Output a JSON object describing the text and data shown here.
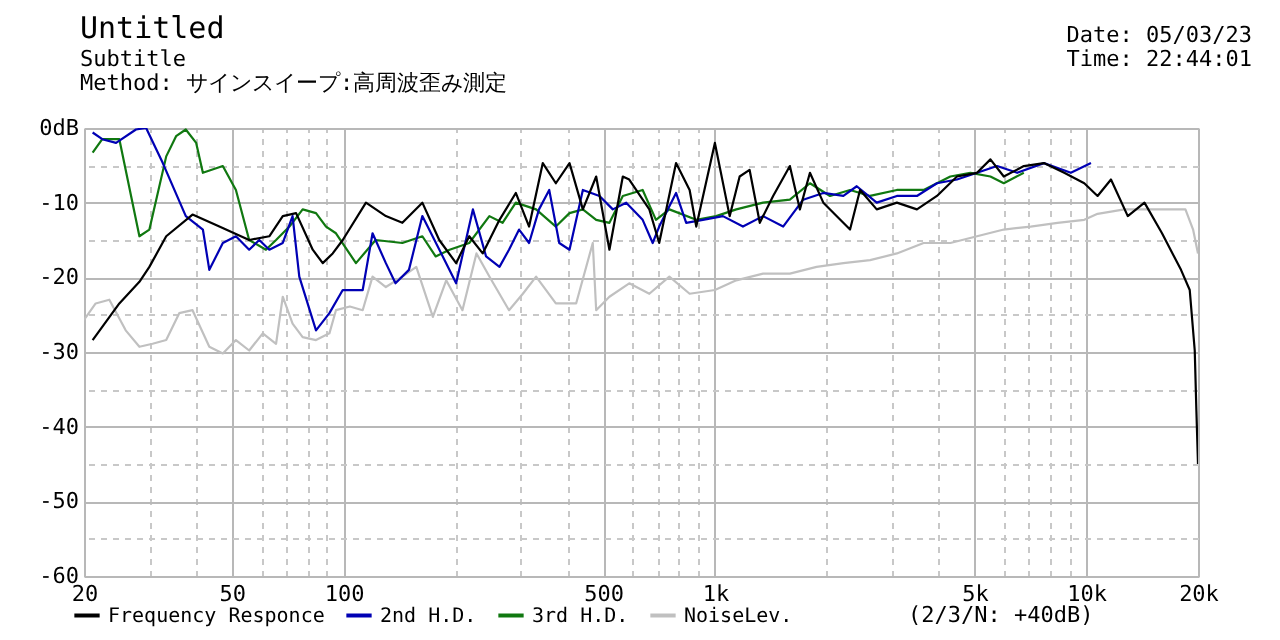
{
  "chart_data": {
    "type": "line",
    "title": "Untitled",
    "subtitle": "Subtitle",
    "annotations": [
      "Method: サインスイープ:高周波歪み測定",
      "Date: 05/03/23",
      "Time: 22:44:01",
      "(2/3/N: +40dB)"
    ],
    "series": [
      {
        "name": "Frequency Responce",
        "color": "#000000",
        "x": [
          21.1,
          24.9,
          28.2,
          30.0,
          33.3,
          39.2,
          46.3,
          55.7,
          63.1,
          68.6,
          74.5,
          82.6,
          87.9,
          93.5,
          99.5,
          114.9,
          130,
          144,
          163,
          181,
          201,
          218,
          237,
          263,
          291,
          316,
          344,
          373,
          406,
          441,
          479,
          520,
          565,
          588,
          666,
          708,
          786,
          855,
          891,
          1000,
          1096,
          1166,
          1240,
          1321,
          1435,
          1592,
          1694,
          1803,
          1959,
          2312,
          2460,
          2728,
          3091,
          3500,
          3963,
          4487,
          5081,
          5521,
          5998,
          6792,
          7691,
          8725,
          9880,
          10730,
          11660,
          12940,
          14350,
          16000,
          18000,
          19000,
          19600,
          19800,
          20000
        ],
        "values": [
          -28.4,
          -23.5,
          -20.6,
          -18.6,
          -14.5,
          -11.6,
          -13.2,
          -15.0,
          -14.5,
          -11.8,
          -11.4,
          -16.3,
          -18.1,
          -16.8,
          -15.0,
          -10.0,
          -11.8,
          -12.7,
          -10.0,
          -15.0,
          -18.1,
          -14.5,
          -16.8,
          -12.3,
          -8.7,
          -13.2,
          -4.7,
          -7.4,
          -4.7,
          -10.9,
          -6.5,
          -16.3,
          -6.5,
          -6.9,
          -10.9,
          -15.4,
          -4.7,
          -8.3,
          -13.2,
          -2.0,
          -11.8,
          -6.5,
          -5.6,
          -12.7,
          -9.1,
          -5.1,
          -10.9,
          -6.0,
          -10.0,
          -13.6,
          -8.3,
          -10.9,
          -10.0,
          -10.9,
          -9.1,
          -6.5,
          -6.0,
          -4.2,
          -6.5,
          -5.1,
          -4.7,
          -6.0,
          -7.4,
          -9.1,
          -6.9,
          -11.8,
          -10.0,
          -14.1,
          -19.0,
          -21.7,
          -29.8,
          -37.8,
          -45.0
        ]
      },
      {
        "name": "2nd H.D.",
        "color": "#0000b4",
        "x": [
          21.1,
          22.4,
          24.4,
          27.6,
          29.4,
          32.6,
          37.6,
          41.8,
          43.5,
          47.3,
          51.3,
          55.7,
          59.3,
          63.1,
          68.6,
          72.9,
          76.0,
          84.3,
          91.6,
          99.5,
          112.6,
          119.7,
          130,
          138,
          150,
          163,
          185,
          201,
          223,
          242,
          263,
          279,
          297,
          316,
          336,
          358,
          381,
          406,
          441,
          489,
          531,
          577,
          639,
          680,
          708,
          786,
          837,
          928,
          1051,
          1190,
          1348,
          1527,
          1729,
          1959,
          2218,
          2410,
          2728,
          3091,
          3500,
          3963,
          4487,
          5081,
          5754,
          6518,
          7691,
          9090,
          10300
        ],
        "values": [
          -0.6,
          -1.5,
          -2.0,
          -0.2,
          0,
          -4.7,
          -11.8,
          -13.6,
          -19.0,
          -15.4,
          -14.5,
          -16.3,
          -15.0,
          -16.3,
          -15.4,
          -11.8,
          -19.9,
          -27.1,
          -24.8,
          -21.7,
          -21.7,
          -14.1,
          -18.1,
          -20.8,
          -19.0,
          -11.8,
          -17.2,
          -20.8,
          -10.9,
          -17.2,
          -18.6,
          -16.3,
          -13.6,
          -15.4,
          -10.9,
          -8.3,
          -15.4,
          -16.3,
          -8.3,
          -9.1,
          -10.9,
          -10.0,
          -12.3,
          -15.4,
          -13.2,
          -8.7,
          -12.7,
          -12.3,
          -11.8,
          -13.2,
          -11.8,
          -13.2,
          -9.6,
          -8.7,
          -9.1,
          -7.8,
          -10.0,
          -9.1,
          -9.1,
          -7.4,
          -6.9,
          -6.0,
          -5.1,
          -6.0,
          -4.7,
          -6.0,
          -4.7
        ]
      },
      {
        "name": "3rd H.D.",
        "color": "#107810",
        "x": [
          21.1,
          22.4,
          24.9,
          28.2,
          30.0,
          33.3,
          35.4,
          37.6,
          40.1,
          41.8,
          47.3,
          51.3,
          55.7,
          61.8,
          65.8,
          71.5,
          77.6,
          84.3,
          89.7,
          95.4,
          108,
          122,
          144,
          163,
          177,
          193,
          218,
          247,
          268,
          291,
          330,
          373,
          406,
          441,
          479,
          520,
          565,
          639,
          694,
          754,
          891,
          1008,
          1142,
          1348,
          1592,
          1803,
          2042,
          2312,
          2618,
          3091,
          3648,
          4306,
          4878,
          5521,
          5998,
          6792
        ],
        "values": [
          -3.3,
          -1.5,
          -1.5,
          -14.5,
          -13.6,
          -3.8,
          -1.1,
          -0.2,
          -2.0,
          -6.0,
          -5.1,
          -8.3,
          -15.0,
          -16.3,
          -15.0,
          -13.2,
          -10.9,
          -11.4,
          -13.2,
          -14.1,
          -18.1,
          -15.0,
          -15.4,
          -14.5,
          -17.2,
          -16.3,
          -15.4,
          -11.8,
          -12.7,
          -10.0,
          -10.9,
          -13.2,
          -11.4,
          -10.9,
          -12.3,
          -12.7,
          -9.1,
          -8.3,
          -12.3,
          -10.9,
          -12.3,
          -11.8,
          -10.9,
          -10.0,
          -9.6,
          -7.4,
          -9.1,
          -8.3,
          -9.1,
          -8.3,
          -8.3,
          -6.5,
          -6.0,
          -6.5,
          -7.4,
          -6.0
        ]
      },
      {
        "name": "NoiseLev.",
        "color": "#c0c0c0",
        "x": [
          20,
          21.5,
          23.4,
          25.9,
          28.2,
          30.6,
          33.3,
          36.1,
          39.2,
          43.5,
          47.3,
          51.3,
          55.7,
          60.6,
          65.8,
          68.6,
          72.9,
          77.6,
          84.3,
          91.6,
          95.4,
          104,
          112.6,
          119.7,
          130,
          144,
          157,
          174,
          189,
          209,
          228,
          247,
          279,
          304,
          330,
          373,
          423,
          469,
          479,
          520,
          588,
          666,
          754,
          855,
          1000,
          1142,
          1348,
          1592,
          1879,
          2218,
          2618,
          3091,
          3648,
          4306,
          5081,
          5998,
          7083,
          8370,
          9880,
          10730,
          12670,
          14950,
          16800,
          18500,
          19400,
          20000
        ],
        "values": [
          -25.7,
          -23.5,
          -23.0,
          -27.1,
          -29.3,
          -28.9,
          -28.4,
          -24.8,
          -24.4,
          -29.3,
          -30.2,
          -28.4,
          -29.8,
          -27.5,
          -28.9,
          -22.6,
          -26.2,
          -28.0,
          -28.4,
          -27.5,
          -24.4,
          -23.9,
          -24.4,
          -19.9,
          -21.3,
          -19.9,
          -18.6,
          -25.3,
          -20.4,
          -24.4,
          -16.8,
          -19.9,
          -24.4,
          -22.2,
          -19.9,
          -23.5,
          -23.5,
          -15.4,
          -24.4,
          -22.6,
          -20.8,
          -22.2,
          -19.9,
          -22.2,
          -21.7,
          -20.4,
          -19.5,
          -19.5,
          -18.6,
          -18.1,
          -17.7,
          -16.8,
          -15.4,
          -15.4,
          -14.5,
          -13.6,
          -13.2,
          -12.7,
          -12.3,
          -11.5,
          -10.9,
          -10.9,
          -10.9,
          -10.9,
          -13.6,
          -16.8
        ]
      }
    ],
    "xlim": [
      20,
      20000
    ],
    "xticks": [
      20,
      {
        "value": 30,
        "label": null
      },
      {
        "value": 40,
        "label": null
      },
      50,
      {
        "value": 60,
        "label": null
      },
      {
        "value": 70,
        "label": null
      },
      {
        "value": 80,
        "label": null
      },
      {
        "value": 90,
        "label": null
      },
      100,
      {
        "value": 200,
        "label": null
      },
      {
        "value": 300,
        "label": null
      },
      {
        "value": 400,
        "label": null
      },
      500,
      {
        "value": 600,
        "label": null
      },
      {
        "value": 700,
        "label": null
      },
      {
        "value": 800,
        "label": null
      },
      {
        "value": 900,
        "label": null
      },
      {
        "value": 1000,
        "label": "1k"
      },
      {
        "value": 2000,
        "label": null
      },
      {
        "value": 3000,
        "label": null
      },
      {
        "value": 4000,
        "label": null
      },
      {
        "value": 5000,
        "label": "5k"
      },
      {
        "value": 6000,
        "label": null
      },
      {
        "value": 7000,
        "label": null
      },
      {
        "value": 8000,
        "label": null
      },
      {
        "value": 9000,
        "label": null
      },
      {
        "value": 10000,
        "label": "10k"
      },
      {
        "value": 20000,
        "label": "20k"
      }
    ],
    "ylim": [
      -60,
      0
    ],
    "yticks": [
      -60,
      {
        "value": -55,
        "label": null
      },
      -50,
      {
        "value": -45,
        "label": null
      },
      -40,
      {
        "value": -35,
        "label": null
      },
      -30,
      {
        "value": -25,
        "label": null
      },
      -20,
      {
        "value": -15,
        "label": null
      },
      -10,
      {
        "value": -5,
        "label": null
      },
      {
        "value": 0,
        "label": "0dB"
      }
    ],
    "log": "x",
    "grid": true,
    "legend": "bottom"
  }
}
